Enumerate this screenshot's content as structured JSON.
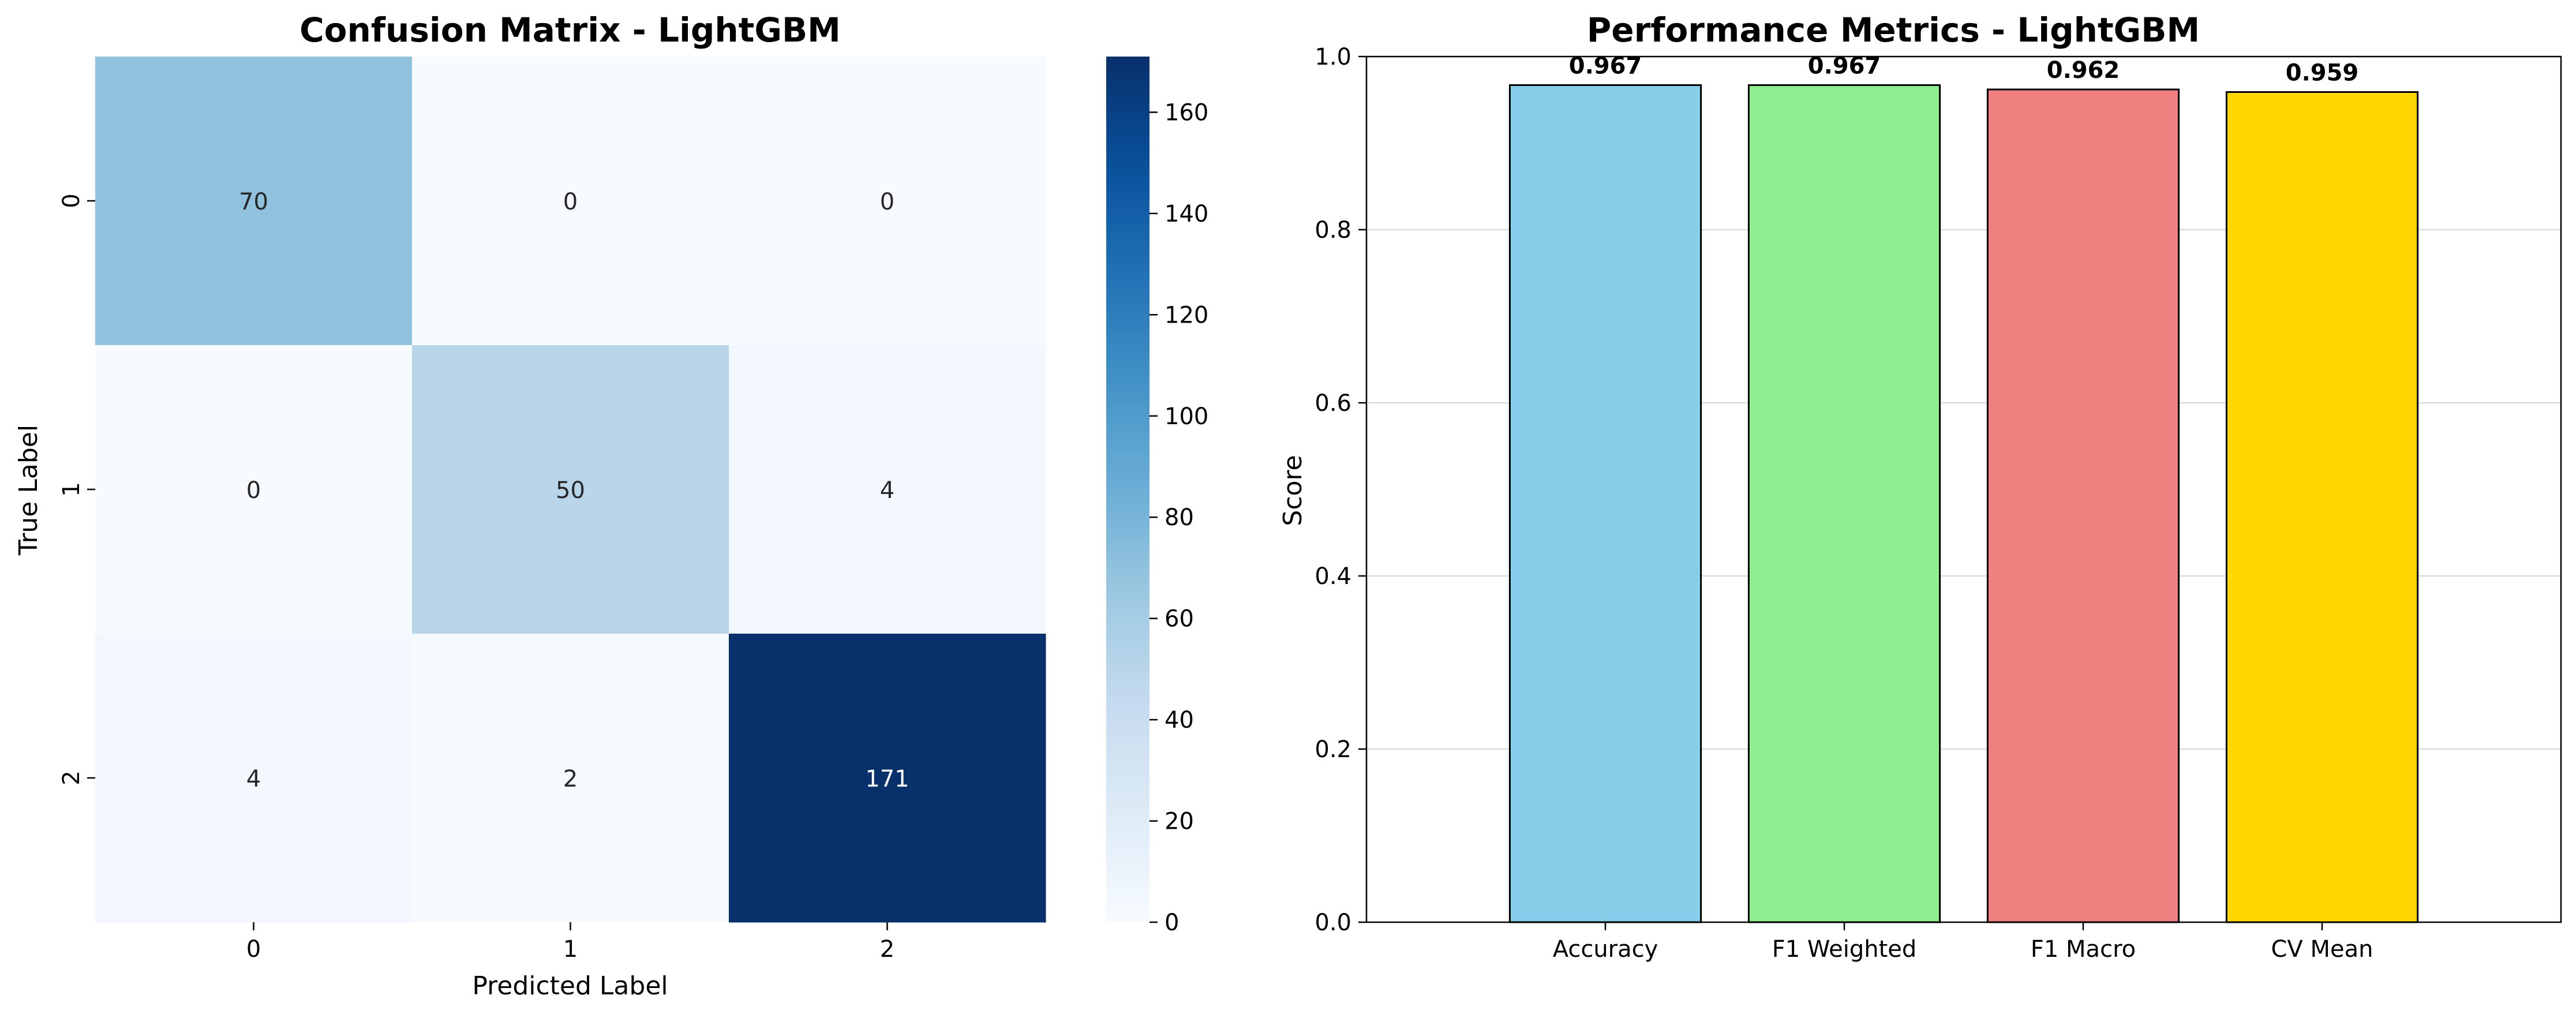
{
  "chart_data": [
    {
      "type": "heatmap",
      "title": "Confusion Matrix - LightGBM",
      "xlabel": "Predicted Label",
      "ylabel": "True Label",
      "x_categories": [
        "0",
        "1",
        "2"
      ],
      "y_categories": [
        "0",
        "1",
        "2"
      ],
      "matrix": [
        [
          70,
          0,
          0
        ],
        [
          0,
          50,
          4
        ],
        [
          4,
          2,
          171
        ]
      ],
      "annotations": [
        [
          "70",
          "0",
          "0"
        ],
        [
          "0",
          "50",
          "4"
        ],
        [
          "4",
          "2",
          "171"
        ]
      ],
      "colormap": "Blues",
      "colorbar": {
        "range": [
          0,
          171
        ],
        "ticks": [
          0,
          20,
          40,
          60,
          80,
          100,
          120,
          140,
          160
        ],
        "tick_labels": [
          "0",
          "20",
          "40",
          "60",
          "80",
          "100",
          "120",
          "140",
          "160"
        ]
      }
    },
    {
      "type": "bar",
      "title": "Performance Metrics - LightGBM",
      "xlabel": "",
      "ylabel": "Score",
      "categories": [
        "Accuracy",
        "F1 Weighted",
        "F1 Macro",
        "CV Mean"
      ],
      "values": [
        0.967,
        0.967,
        0.962,
        0.959
      ],
      "value_labels": [
        "0.967",
        "0.967",
        "0.962",
        "0.959"
      ],
      "colors": [
        "#87ceeb",
        "#90ee90",
        "#f08080",
        "#ffd700"
      ],
      "ylim": [
        0,
        1.0
      ],
      "y_ticks": [
        0.0,
        0.2,
        0.4,
        0.6,
        0.8,
        1.0
      ],
      "y_tick_labels": [
        "0.0",
        "0.2",
        "0.4",
        "0.6",
        "0.8",
        "1.0"
      ],
      "grid": "y"
    }
  ]
}
